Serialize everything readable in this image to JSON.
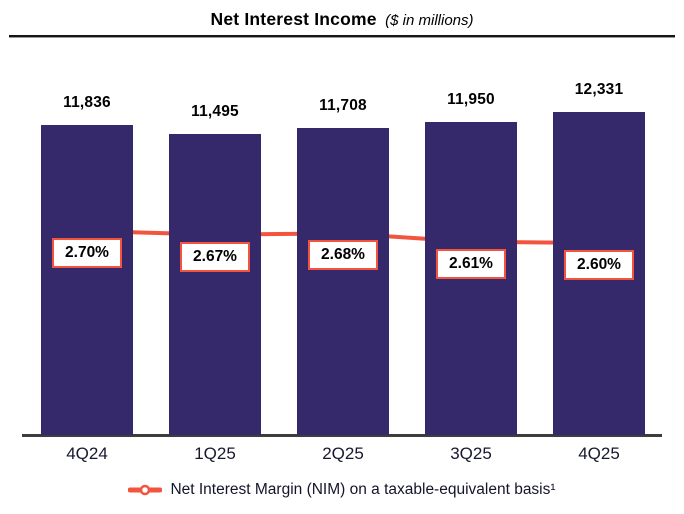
{
  "header": {
    "title": "Net Interest Income",
    "subtitle": "($ in millions)"
  },
  "legend": {
    "label": "Net Interest Margin (NIM) on a taxable-equivalent basis¹",
    "marker_icon": "nim-line-with-circle-icon"
  },
  "colors": {
    "bar": "#35296B",
    "accent": "#F2543E",
    "axis": "#3D3D3D",
    "text": "#000000"
  },
  "chart_data": {
    "type": "bar",
    "subtype": "bar-with-line-overlay",
    "title": "Net Interest Income",
    "subtitle": "($ in millions)",
    "categories": [
      "4Q24",
      "1Q25",
      "2Q25",
      "3Q25",
      "4Q25"
    ],
    "series": [
      {
        "name": "Net Interest Income ($ in millions)",
        "type": "bar",
        "values": [
          11836,
          11495,
          11708,
          11950,
          12331
        ],
        "labels": [
          "11,836",
          "11,495",
          "11,708",
          "11,950",
          "12,331"
        ]
      },
      {
        "name": "Net Interest Margin (NIM) on a taxable-equivalent basis",
        "type": "line",
        "values": [
          2.7,
          2.67,
          2.68,
          2.61,
          2.6
        ],
        "labels": [
          "2.70%",
          "2.67%",
          "2.68%",
          "2.61%",
          "2.60%"
        ]
      }
    ],
    "ylim_bars": [
      0,
      12331
    ],
    "grid": false,
    "legend_position": "bottom"
  }
}
